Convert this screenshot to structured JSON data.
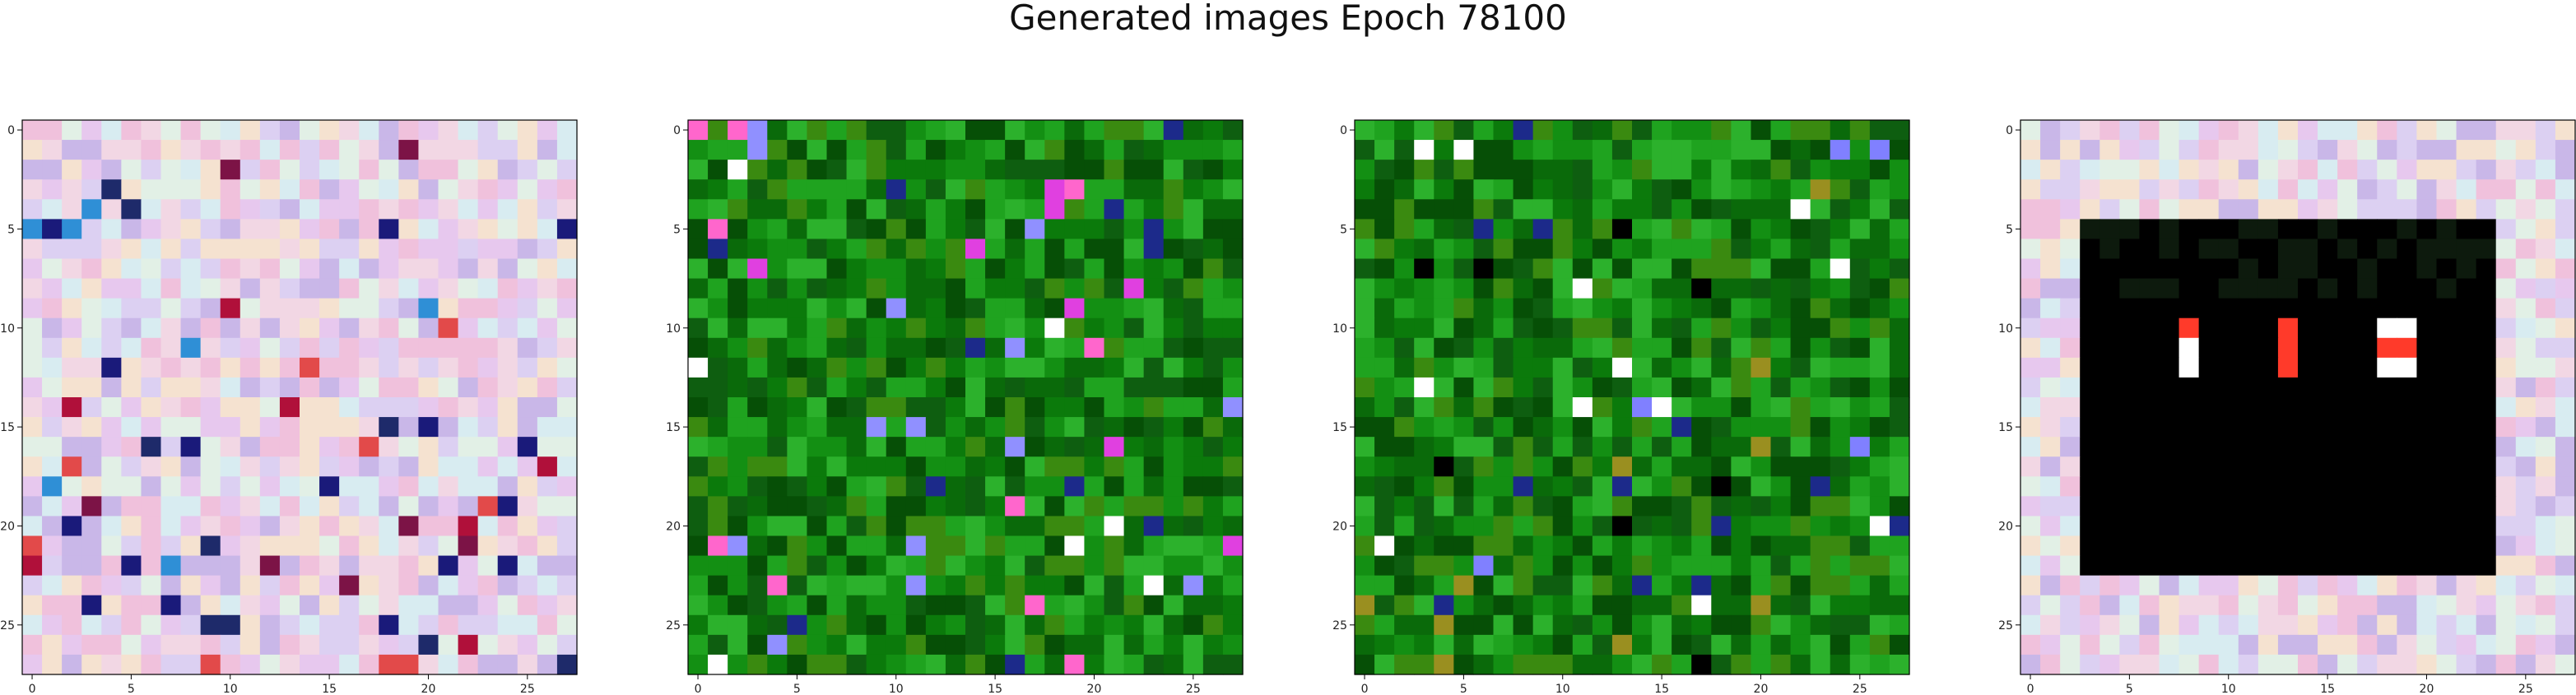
{
  "figure": {
    "title": "Generated images Epoch 78100"
  },
  "chart_data": [
    {
      "type": "heatmap",
      "title": "",
      "xlabel": "",
      "ylabel": "",
      "grid_size": [
        28,
        28
      ],
      "xlim": [
        -0.5,
        27.5
      ],
      "ylim": [
        27.5,
        -0.5
      ],
      "xticks": [
        0,
        5,
        10,
        15,
        20,
        25
      ],
      "yticks": [
        0,
        5,
        10,
        15,
        20,
        25
      ],
      "grid": false,
      "description": "RGB image; pastel pink/lavender/cyan noise with darker accents in rows 12-14 and row 20",
      "palette": [
        "#f2d7e4",
        "#e7c8ee",
        "#d8ecf1",
        "#f5e2d0",
        "#c9b7e8",
        "#f0c1dc",
        "#e2f0e6",
        "#dcd0f2"
      ],
      "accent": [
        "#1a1a7a",
        "#b0103a",
        "#2f8fd6",
        "#7c1346",
        "#e24a4a",
        "#1e2a6a"
      ]
    },
    {
      "type": "heatmap",
      "title": "",
      "xlabel": "",
      "ylabel": "",
      "grid_size": [
        28,
        28
      ],
      "xlim": [
        -0.5,
        27.5
      ],
      "ylim": [
        27.5,
        -0.5
      ],
      "xticks": [
        0,
        5,
        10,
        15,
        20,
        25
      ],
      "yticks": [
        0,
        5,
        10,
        15,
        20,
        25
      ],
      "grid": false,
      "description": "RGB image; mostly green noise with a few magenta/white pixels at top-right and near row 17",
      "palette": [
        "#0b7a0b",
        "#0a6a0a",
        "#138f13",
        "#064f06",
        "#1fa31f",
        "#0e5e10",
        "#2cb12c",
        "#3a8a10"
      ],
      "accent": [
        "#ff66cc",
        "#ffffff",
        "#e040e0",
        "#9090ff",
        "#1c2a8a"
      ]
    },
    {
      "type": "heatmap",
      "title": "",
      "xlabel": "",
      "ylabel": "",
      "grid_size": [
        28,
        28
      ],
      "xlim": [
        -0.5,
        27.5
      ],
      "ylim": [
        27.5,
        -0.5
      ],
      "xticks": [
        0,
        5,
        10,
        15,
        20,
        25
      ],
      "yticks": [
        0,
        5,
        10,
        15,
        20,
        25
      ],
      "grid": false,
      "description": "RGB image; mostly green noise with a few blue/white pixels at top-right and a yellowish patch near row 16",
      "palette": [
        "#0b7a0b",
        "#0a6a0a",
        "#138f13",
        "#064f06",
        "#1fa31f",
        "#0e5e10",
        "#2cb12c",
        "#3a8a10"
      ],
      "accent": [
        "#8080ff",
        "#ffffff",
        "#9a8f20",
        "#1c2a8a",
        "#000000"
      ]
    },
    {
      "type": "heatmap",
      "title": "",
      "xlabel": "",
      "ylabel": "",
      "grid_size": [
        28,
        28
      ],
      "xlim": [
        -0.5,
        27.5
      ],
      "ylim": [
        27.5,
        -0.5
      ],
      "xticks": [
        0,
        5,
        10,
        15,
        20,
        25
      ],
      "yticks": [
        0,
        5,
        10,
        15,
        20,
        25
      ],
      "grid": false,
      "description": "RGB image; pastel noise border with a black rectangle spanning columns 3-23, rows 5-22, containing red/orange pixels near rows 10-12",
      "black_region": {
        "col_start": 3,
        "col_end": 23,
        "row_start": 5,
        "row_end": 22
      },
      "palette": [
        "#f2d7e4",
        "#e7c8ee",
        "#d8ecf1",
        "#f5e2d0",
        "#c9b7e8",
        "#f0c1dc",
        "#e2f0e6",
        "#dcd0f2"
      ],
      "accent": [
        "#ff3a2a",
        "#ff7a4a",
        "#ffffff",
        "#c0202a",
        "#1a1a1a"
      ]
    }
  ]
}
